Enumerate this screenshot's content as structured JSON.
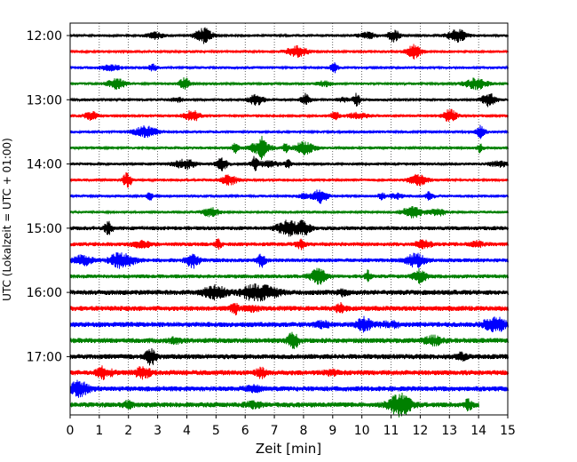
{
  "chart_data": {
    "type": "line",
    "subtype": "helicorder",
    "xlabel": "Zeit  [min]",
    "ylabel": "UTC (Lokalzeit = UTC + 01:00)",
    "xlim": [
      0,
      15
    ],
    "x_ticks": [
      "0",
      "1",
      "2",
      "3",
      "4",
      "5",
      "6",
      "7",
      "8",
      "9",
      "10",
      "11",
      "12",
      "13",
      "14",
      "15"
    ],
    "y_ticks": [
      "12:00",
      "13:00",
      "14:00",
      "15:00",
      "16:00",
      "17:00"
    ],
    "trace_interval_min": 15,
    "grid": "vertical dotted",
    "colors": [
      "#000000",
      "#ff0000",
      "#0000ff",
      "#008000"
    ],
    "traces": [
      {
        "start": "12:00",
        "color": "#000000",
        "end_min": 15
      },
      {
        "start": "12:15",
        "color": "#ff0000",
        "end_min": 15
      },
      {
        "start": "12:30",
        "color": "#0000ff",
        "end_min": 15
      },
      {
        "start": "12:45",
        "color": "#008000",
        "end_min": 15
      },
      {
        "start": "13:00",
        "color": "#000000",
        "end_min": 15
      },
      {
        "start": "13:15",
        "color": "#ff0000",
        "end_min": 15
      },
      {
        "start": "13:30",
        "color": "#0000ff",
        "end_min": 15
      },
      {
        "start": "13:45",
        "color": "#008000",
        "end_min": 15
      },
      {
        "start": "14:00",
        "color": "#000000",
        "end_min": 15
      },
      {
        "start": "14:15",
        "color": "#ff0000",
        "end_min": 15
      },
      {
        "start": "14:30",
        "color": "#0000ff",
        "end_min": 15
      },
      {
        "start": "14:45",
        "color": "#008000",
        "end_min": 15
      },
      {
        "start": "15:00",
        "color": "#000000",
        "end_min": 15
      },
      {
        "start": "15:15",
        "color": "#ff0000",
        "end_min": 15
      },
      {
        "start": "15:30",
        "color": "#0000ff",
        "end_min": 15
      },
      {
        "start": "15:45",
        "color": "#008000",
        "end_min": 15
      },
      {
        "start": "16:00",
        "color": "#000000",
        "end_min": 15
      },
      {
        "start": "16:15",
        "color": "#ff0000",
        "end_min": 15
      },
      {
        "start": "16:30",
        "color": "#0000ff",
        "end_min": 15
      },
      {
        "start": "16:45",
        "color": "#008000",
        "end_min": 15
      },
      {
        "start": "17:00",
        "color": "#000000",
        "end_min": 15
      },
      {
        "start": "17:15",
        "color": "#ff0000",
        "end_min": 15
      },
      {
        "start": "17:30",
        "color": "#0000ff",
        "end_min": 15
      },
      {
        "start": "17:45",
        "color": "#008000",
        "end_min": 14
      }
    ]
  }
}
